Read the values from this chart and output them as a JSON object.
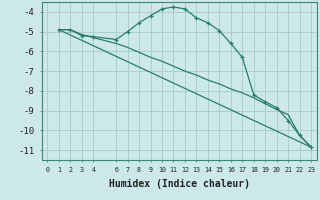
{
  "xlabel": "Humidex (Indice chaleur)",
  "bg_color": "#cce8e8",
  "grid_color": "#aacece",
  "line_color": "#2a7d6e",
  "xlim": [
    -0.5,
    23.5
  ],
  "ylim": [
    -11.5,
    -3.5
  ],
  "yticks": [
    -4,
    -5,
    -6,
    -7,
    -8,
    -9,
    -10,
    -11
  ],
  "xticks": [
    0,
    1,
    2,
    3,
    4,
    6,
    7,
    8,
    9,
    10,
    11,
    12,
    13,
    14,
    15,
    16,
    17,
    18,
    19,
    20,
    21,
    22,
    23
  ],
  "series1_x": [
    1,
    2,
    3,
    4,
    6,
    7,
    8,
    9,
    10,
    11,
    12,
    13,
    14,
    15,
    16,
    17,
    18,
    19,
    20,
    21,
    22,
    23
  ],
  "series1_y": [
    -4.9,
    -4.9,
    -5.2,
    -5.25,
    -5.4,
    -5.0,
    -4.55,
    -4.2,
    -3.85,
    -3.75,
    -3.85,
    -4.3,
    -4.55,
    -4.95,
    -5.6,
    -6.3,
    -8.2,
    -8.55,
    -8.85,
    -9.5,
    -10.25,
    -10.85
  ],
  "series2_x": [
    1,
    2,
    3,
    4,
    6,
    7,
    8,
    9,
    10,
    11,
    12,
    13,
    14,
    15,
    16,
    17,
    18,
    19,
    20,
    21,
    22,
    23
  ],
  "series2_y": [
    -4.9,
    -4.9,
    -5.15,
    -5.3,
    -5.6,
    -5.8,
    -6.05,
    -6.3,
    -6.5,
    -6.75,
    -7.0,
    -7.2,
    -7.45,
    -7.65,
    -7.9,
    -8.1,
    -8.35,
    -8.65,
    -8.95,
    -9.2,
    -10.25,
    -10.85
  ],
  "series3_x": [
    1,
    23
  ],
  "series3_y": [
    -4.9,
    -10.85
  ]
}
